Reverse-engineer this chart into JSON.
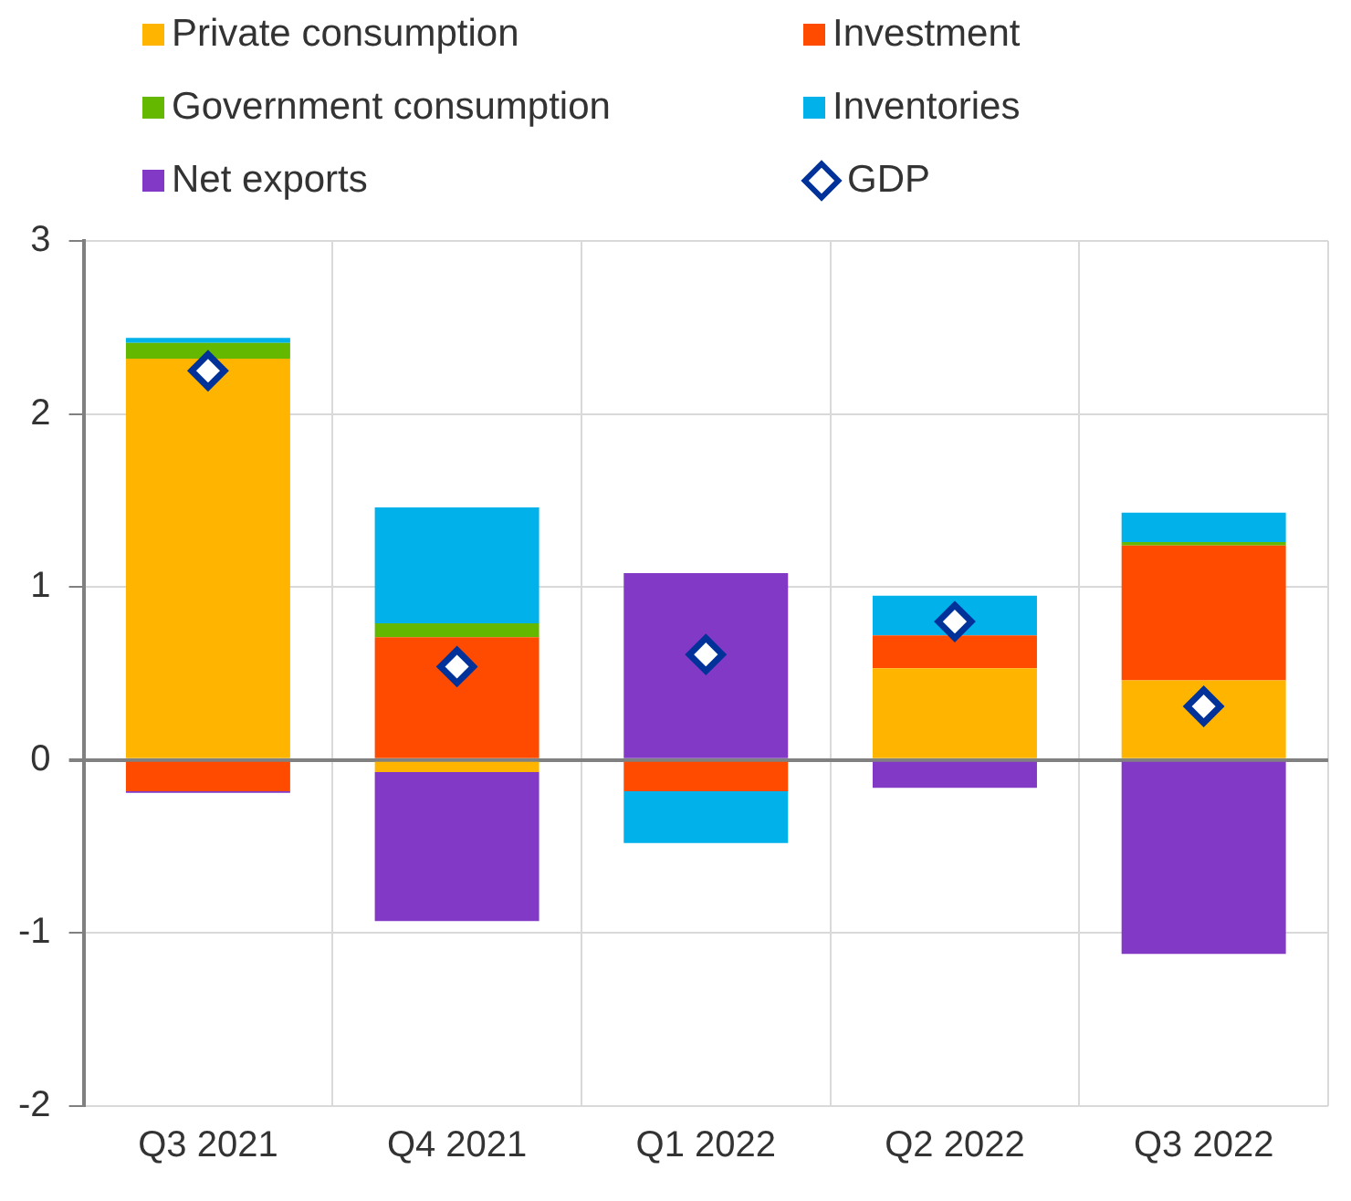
{
  "chart_data": {
    "type": "bar",
    "stacked": true,
    "categories": [
      "Q3 2021",
      "Q4 2021",
      "Q1 2022",
      "Q2 2022",
      "Q3 2022"
    ],
    "series": [
      {
        "name": "Private consumption",
        "color": "#ffb400",
        "values": [
          2.32,
          -0.07,
          null,
          0.53,
          0.46
        ]
      },
      {
        "name": "Investment",
        "color": "#ff4b00",
        "values": [
          -0.18,
          0.71,
          -0.18,
          0.19,
          0.78
        ]
      },
      {
        "name": "Government consumption",
        "color": "#65b800",
        "values": [
          0.09,
          0.08,
          null,
          null,
          0.02
        ]
      },
      {
        "name": "Inventories",
        "color": "#00b1ea",
        "values": [
          0.03,
          0.67,
          -0.3,
          0.23,
          0.17
        ]
      },
      {
        "name": "Net exports",
        "color": "#8139c6",
        "values": [
          -0.01,
          -0.86,
          1.08,
          -0.16,
          -1.12
        ]
      },
      {
        "name": "GDP",
        "color": "#003299",
        "type": "scatter",
        "marker": "diamond",
        "x": [
          "Q3 2021",
          "Q4 2021",
          "Q1 2022",
          "Q2 2022",
          "Q3 2022"
        ],
        "values": [
          2.25,
          0.54,
          0.61,
          0.8,
          0.31
        ]
      }
    ],
    "ylim": [
      -2,
      3
    ],
    "yticks": [
      -2,
      -1,
      0,
      1,
      2,
      3
    ],
    "grid": true,
    "legend": "top"
  }
}
